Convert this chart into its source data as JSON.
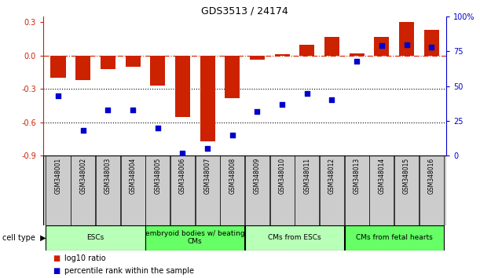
{
  "title": "GDS3513 / 24174",
  "samples": [
    "GSM348001",
    "GSM348002",
    "GSM348003",
    "GSM348004",
    "GSM348005",
    "GSM348006",
    "GSM348007",
    "GSM348008",
    "GSM348009",
    "GSM348010",
    "GSM348011",
    "GSM348012",
    "GSM348013",
    "GSM348014",
    "GSM348015",
    "GSM348016"
  ],
  "log10_ratio": [
    -0.2,
    -0.22,
    -0.12,
    -0.1,
    -0.27,
    -0.55,
    -0.77,
    -0.38,
    -0.04,
    0.01,
    0.1,
    0.17,
    0.02,
    0.17,
    0.3,
    0.23
  ],
  "percentile_rank": [
    43,
    18,
    33,
    33,
    20,
    2,
    5,
    15,
    32,
    37,
    45,
    40,
    68,
    79,
    80,
    78
  ],
  "cell_type_groups": [
    {
      "label": "ESCs",
      "start": 0,
      "end": 3,
      "color": "#b8ffb8"
    },
    {
      "label": "embryoid bodies w/ beating\nCMs",
      "start": 4,
      "end": 7,
      "color": "#66ff66"
    },
    {
      "label": "CMs from ESCs",
      "start": 8,
      "end": 11,
      "color": "#b8ffb8"
    },
    {
      "label": "CMs from fetal hearts",
      "start": 12,
      "end": 15,
      "color": "#66ff66"
    }
  ],
  "bar_color": "#cc2200",
  "scatter_color": "#0000cc",
  "left_ylim": [
    -0.9,
    0.35
  ],
  "right_ylim": [
    0,
    100
  ],
  "left_yticks": [
    -0.9,
    -0.6,
    -0.3,
    0.0,
    0.3
  ],
  "right_yticks": [
    0,
    25,
    50,
    75,
    100
  ],
  "right_yticklabels": [
    "0",
    "25",
    "50",
    "75",
    "100%"
  ],
  "hline_y": 0.0,
  "dotted_lines": [
    -0.3,
    -0.6
  ],
  "background_color": "#ffffff",
  "label_box_color": "#cccccc",
  "legend_items": [
    {
      "color": "#cc2200",
      "label": "log10 ratio"
    },
    {
      "color": "#0000cc",
      "label": "percentile rank within the sample"
    }
  ]
}
